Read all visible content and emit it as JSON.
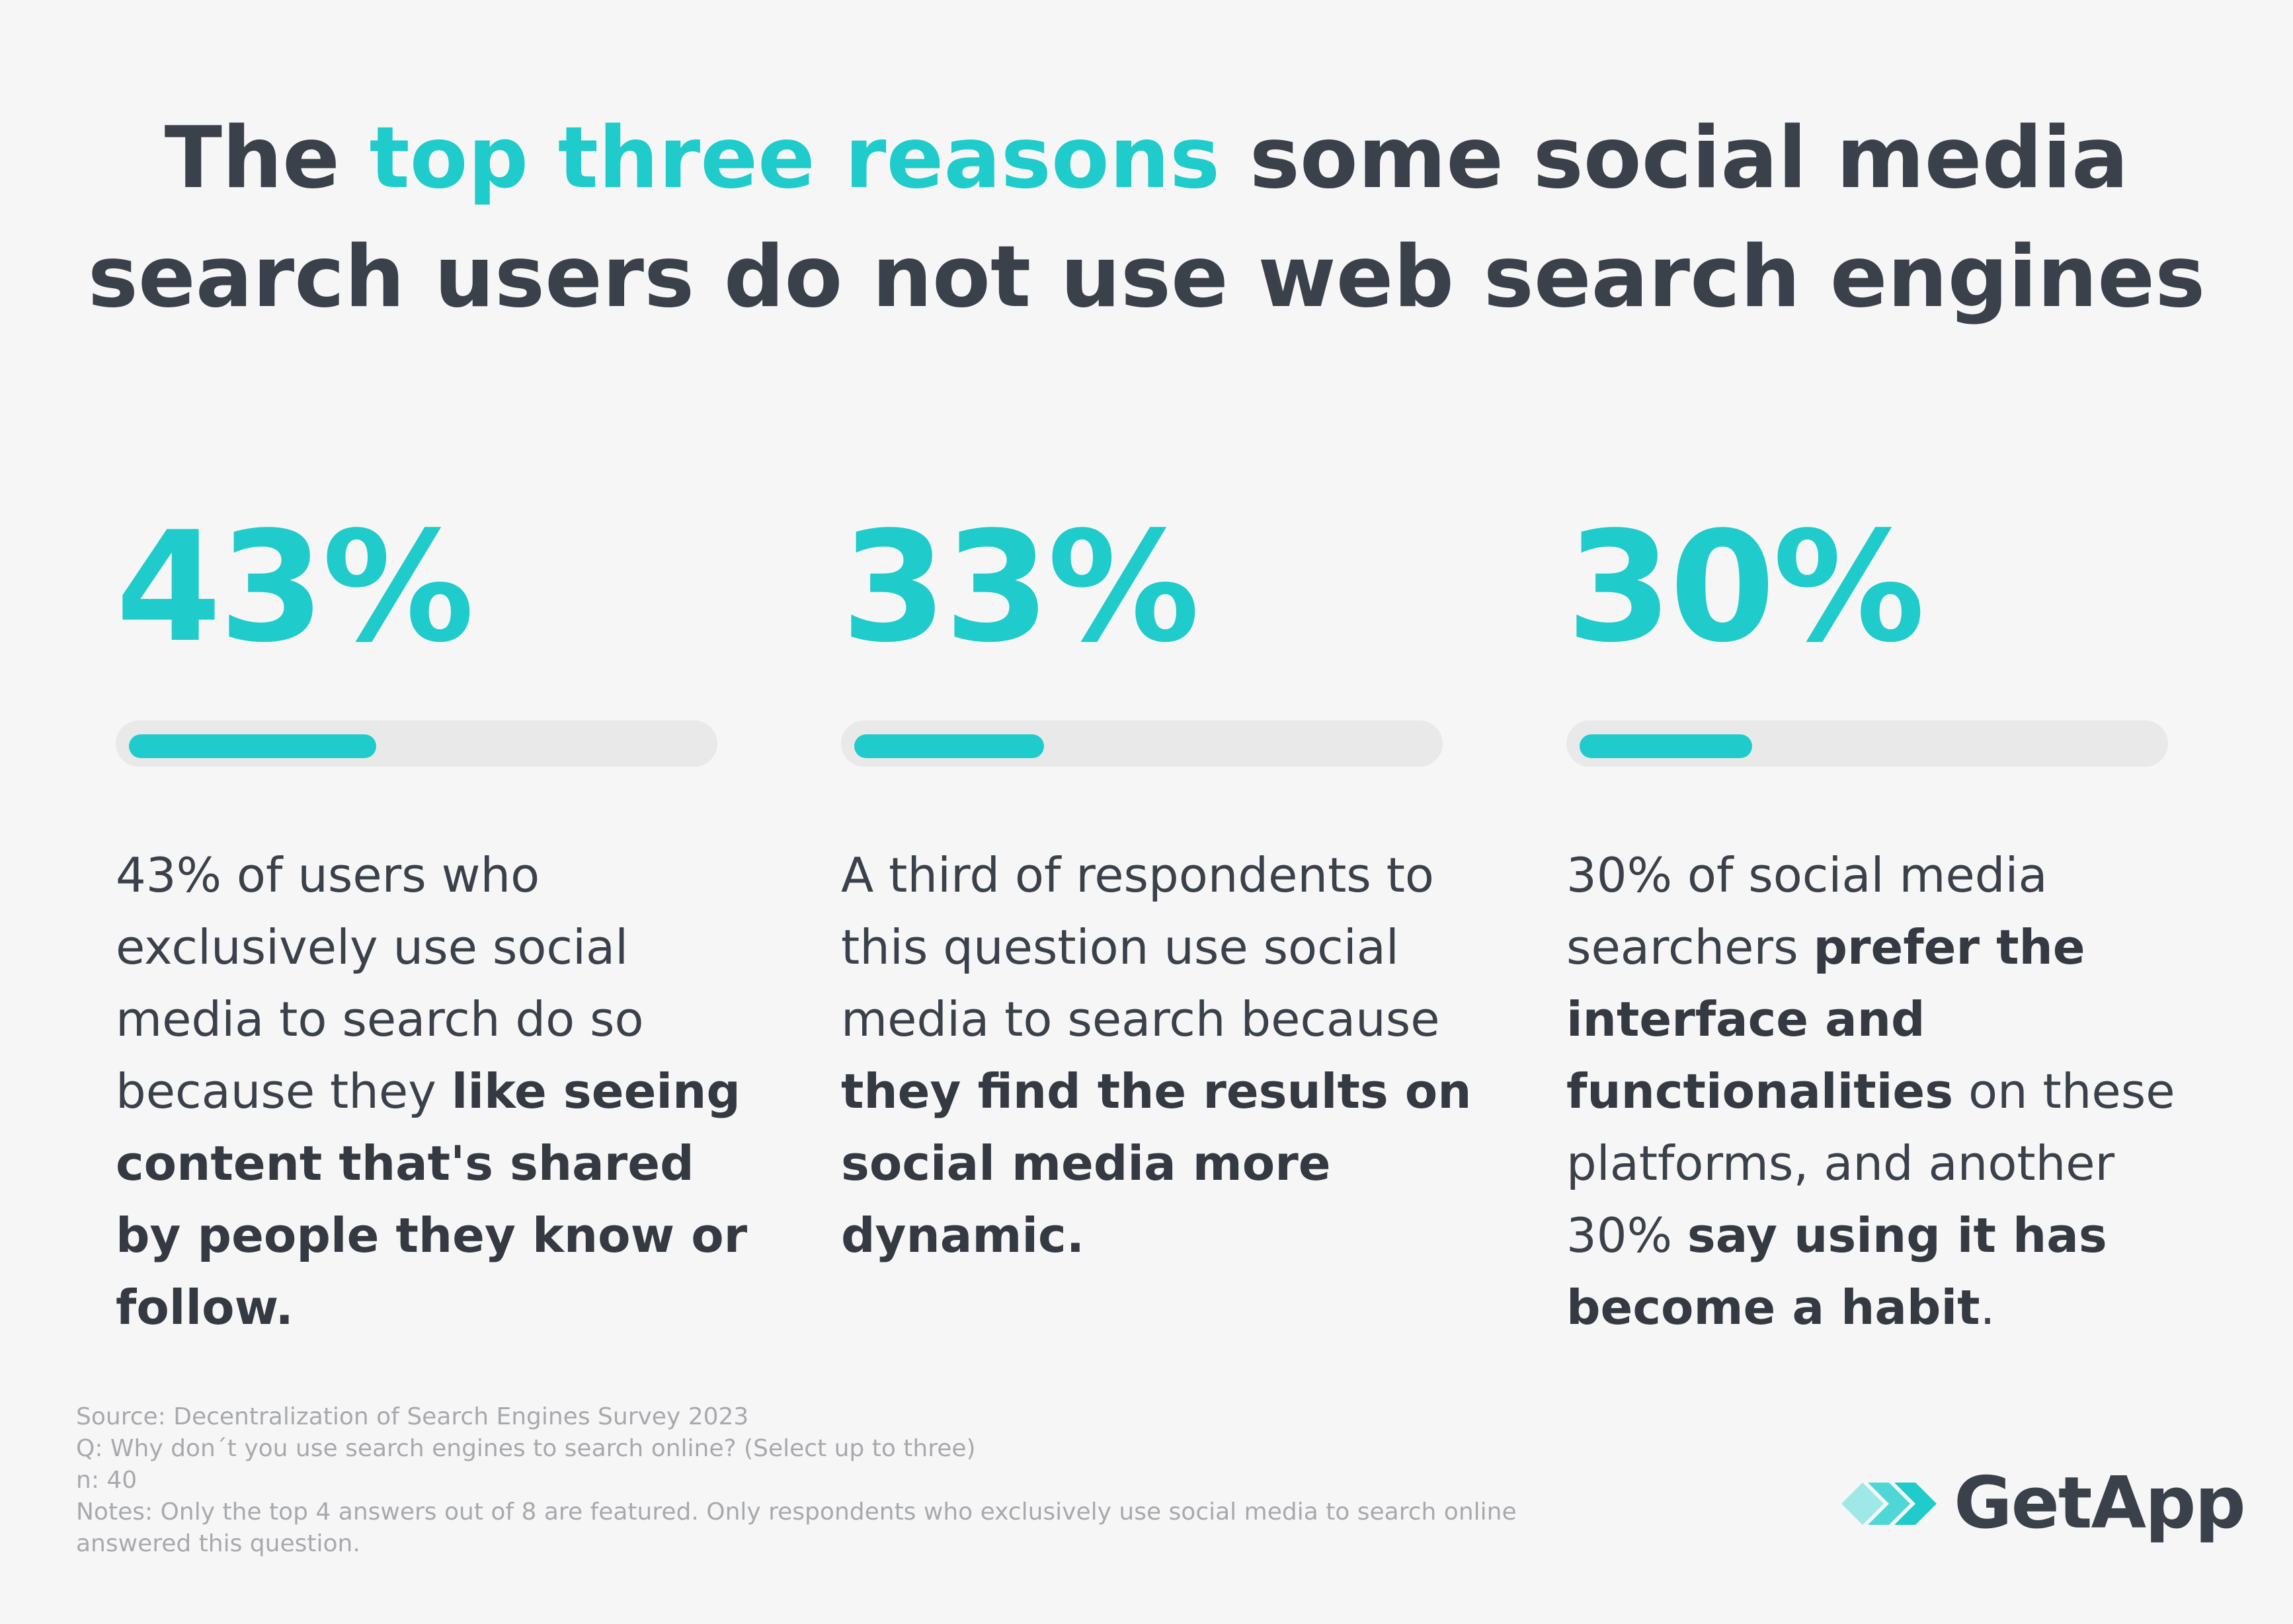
{
  "title": {
    "line1_prefix": "The ",
    "line1_accent": "top three reasons",
    "line1_suffix": " some social media",
    "line2": "search users do not use web search engines"
  },
  "chart_data": {
    "type": "bar",
    "categories": [
      "Like seeing content that's shared by people they know or follow",
      "They find the results on social media more dynamic",
      "Prefer the interface and functionalities / say using it has become a habit"
    ],
    "values": [
      43,
      33,
      30
    ],
    "ylim": [
      0,
      100
    ],
    "unit": "%"
  },
  "stats": [
    {
      "label": "43%",
      "value": 43,
      "segments": [
        {
          "text": "43% of users who exclusively use social media to search do so because they ",
          "bold": false
        },
        {
          "text": "like seeing content that's shared by people they know or follow.",
          "bold": true
        }
      ]
    },
    {
      "label": "33%",
      "value": 33,
      "segments": [
        {
          "text": "A third of respondents to this question use social media to search because ",
          "bold": false
        },
        {
          "text": "they find the results on social media more dynamic.",
          "bold": true
        }
      ]
    },
    {
      "label": "30%",
      "value": 30,
      "segments": [
        {
          "text": "30% of social media searchers ",
          "bold": false
        },
        {
          "text": "prefer the interface and functionalities",
          "bold": true
        },
        {
          "text": " on these platforms, and another 30% ",
          "bold": false
        },
        {
          "text": "say using it has become a habit",
          "bold": true
        },
        {
          "text": ".",
          "bold": false
        }
      ]
    }
  ],
  "footer": {
    "source": "Source: Decentralization of Search Engines Survey 2023",
    "question": "Q: Why don´t you use search engines to search online? (Select up to three)",
    "n": "n: 40",
    "notes": "Notes: Only the top 4 answers out of 8 are featured. Only respondents who exclusively use social media to search online answered this question."
  },
  "logo": {
    "text": "GetApp",
    "icon": "getapp-chevrons-icon"
  },
  "colors": {
    "accent": "#1fcbcb",
    "text": "#3b414a",
    "track": "#e9e9e9",
    "background": "#f6f6f6",
    "footer": "#a7a9ad"
  }
}
